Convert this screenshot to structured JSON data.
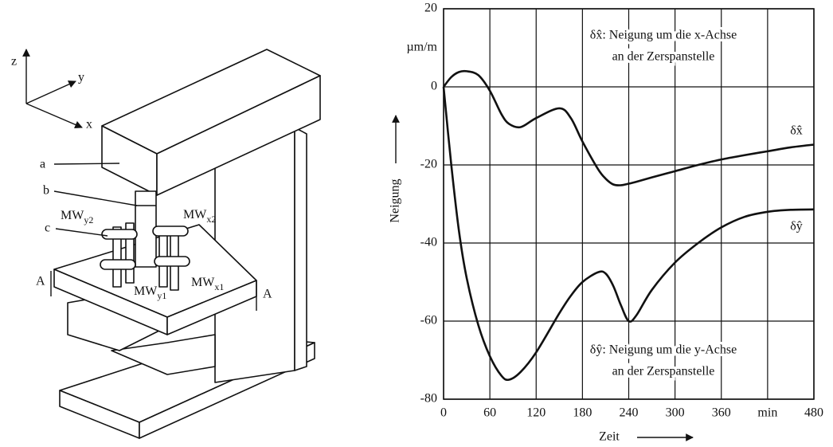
{
  "diagram": {
    "labels": {
      "z": "z",
      "y": "y",
      "x": "x",
      "a": "a",
      "b": "b",
      "c": "c",
      "mw_y2": {
        "main": "MW",
        "sub": "y2"
      },
      "mw_x2": {
        "main": "MW",
        "sub": "x2"
      },
      "mw_y1": {
        "main": "MW",
        "sub": "y1"
      },
      "mw_x1": {
        "main": "MW",
        "sub": "x1"
      },
      "a_left": "A",
      "a_right": "A"
    }
  },
  "chart_data": {
    "type": "line",
    "y_label": "Neigung",
    "x_label": "Zeit",
    "y_unit": "µm/m",
    "annotations": [
      "δx̂: Neigung um die x-Achse",
      "an der Zerspanstelle",
      "δŷ: Neigung um die y-Achse",
      "an der Zerspanstelle"
    ],
    "x": [
      0,
      10,
      20,
      30,
      45,
      60,
      75,
      85,
      100,
      120,
      150,
      165,
      180,
      200,
      210,
      220,
      230,
      240,
      250,
      270,
      300,
      330,
      360,
      390,
      420,
      450,
      480
    ],
    "series": [
      {
        "name": "δx̂",
        "color": "#111111",
        "values": [
          0,
          2.5,
          3.8,
          4,
          3,
          -1,
          -7,
          -9.5,
          -10.3,
          -8,
          -5.5,
          -8,
          -14,
          -21,
          -23.5,
          -25,
          -25.2,
          -24.8,
          -24.3,
          -23.2,
          -21.6,
          -20,
          -18.6,
          -17.5,
          -16.5,
          -15.5,
          -14.8
        ]
      },
      {
        "name": "δŷ",
        "color": "#111111",
        "values": [
          0,
          -20,
          -37,
          -49,
          -61,
          -69,
          -74,
          -75,
          -73,
          -68,
          -58,
          -53.5,
          -50,
          -47.5,
          -47.8,
          -51,
          -56,
          -60,
          -58.5,
          -52,
          -45,
          -40,
          -36,
          -33.3,
          -32,
          -31.5,
          -31.4
        ]
      }
    ],
    "xlim": [
      0,
      480
    ],
    "ylim": [
      -80,
      20
    ],
    "xticks": [
      0,
      60,
      120,
      180,
      240,
      300,
      360,
      {
        "value": 420,
        "label": "min"
      },
      480
    ],
    "yticks": [
      -80,
      -60,
      -40,
      -20,
      0,
      20
    ],
    "grid": true
  }
}
